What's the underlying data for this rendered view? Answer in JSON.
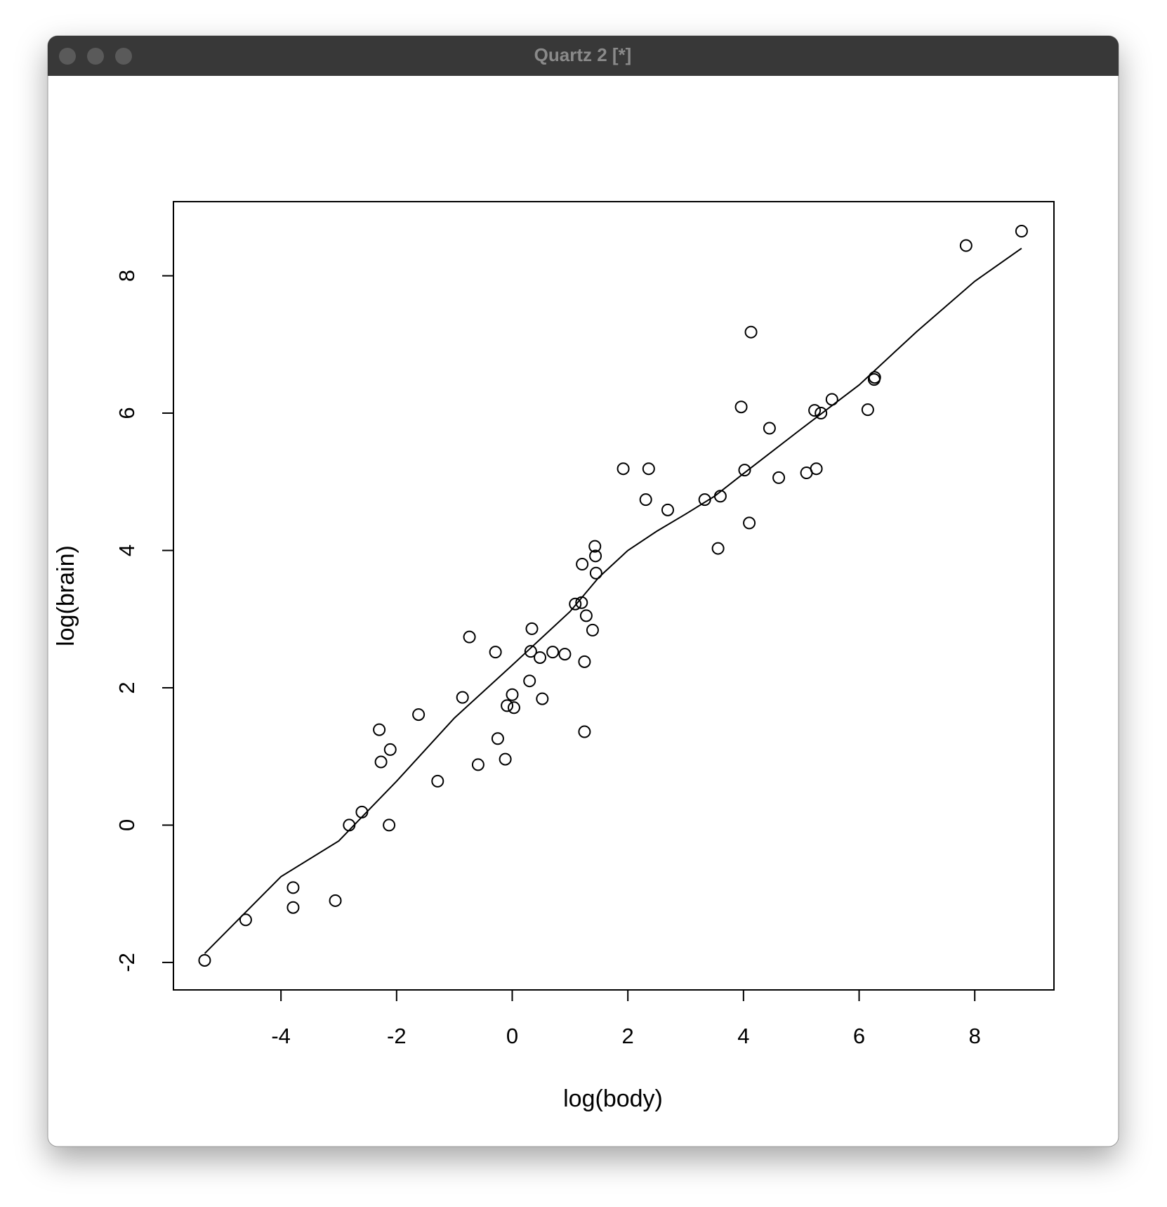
{
  "window": {
    "title": "Quartz 2 [*]"
  },
  "chart_data": {
    "type": "scatter",
    "x_label": "log(body)",
    "y_label": "log(brain)",
    "x": [
      -5.32,
      -4.61,
      -3.79,
      -3.79,
      -3.06,
      -2.82,
      -2.6,
      -2.13,
      -2.3,
      -2.27,
      -2.11,
      -1.62,
      -1.29,
      -0.86,
      -0.74,
      -0.59,
      -0.29,
      -0.25,
      -0.12,
      -0.09,
      0.0,
      0.03,
      0.3,
      0.34,
      0.32,
      0.48,
      0.52,
      0.7,
      0.91,
      1.09,
      1.2,
      1.21,
      1.28,
      1.25,
      1.25,
      1.39,
      1.43,
      1.44,
      1.45,
      1.92,
      2.31,
      2.36,
      2.69,
      3.33,
      3.56,
      3.6,
      3.96,
      4.02,
      4.1,
      4.13,
      4.45,
      4.61,
      5.09,
      5.23,
      5.26,
      5.34,
      5.53,
      6.15,
      6.26,
      6.27,
      7.85,
      8.81
    ],
    "values": [
      -1.97,
      -1.38,
      -0.91,
      -1.2,
      -1.1,
      0.0,
      0.19,
      0.0,
      1.39,
      0.92,
      1.1,
      1.61,
      0.64,
      1.86,
      2.74,
      0.88,
      2.52,
      1.26,
      0.96,
      1.74,
      1.9,
      1.71,
      2.1,
      2.86,
      2.53,
      2.44,
      1.84,
      2.52,
      2.49,
      3.22,
      3.24,
      3.8,
      3.05,
      2.38,
      1.36,
      2.84,
      4.06,
      3.92,
      3.67,
      5.19,
      4.74,
      5.19,
      4.59,
      4.74,
      4.03,
      4.79,
      6.09,
      5.17,
      4.4,
      7.18,
      5.78,
      5.06,
      5.13,
      6.04,
      5.19,
      6.0,
      6.2,
      6.05,
      6.49,
      6.52,
      8.44,
      8.65
    ],
    "color": "#000000",
    "fit": {
      "x": [
        -5.32,
        -4,
        -3,
        -2,
        -1,
        0,
        1,
        1.5,
        2,
        2.5,
        3,
        3.5,
        4,
        5,
        6,
        7,
        8,
        8.81
      ],
      "values": [
        -1.87,
        -0.75,
        -0.23,
        0.64,
        1.56,
        2.33,
        3.11,
        3.61,
        4.0,
        4.28,
        4.53,
        4.79,
        5.12,
        5.77,
        6.41,
        7.19,
        7.92,
        8.4
      ]
    },
    "xlim": [
      -5.86,
      9.37
    ],
    "ylim": [
      -2.4,
      9.08
    ],
    "xticks": [
      -4,
      -2,
      0,
      2,
      4,
      6,
      8
    ],
    "yticks": [
      -2,
      0,
      2,
      4,
      6,
      8
    ]
  }
}
